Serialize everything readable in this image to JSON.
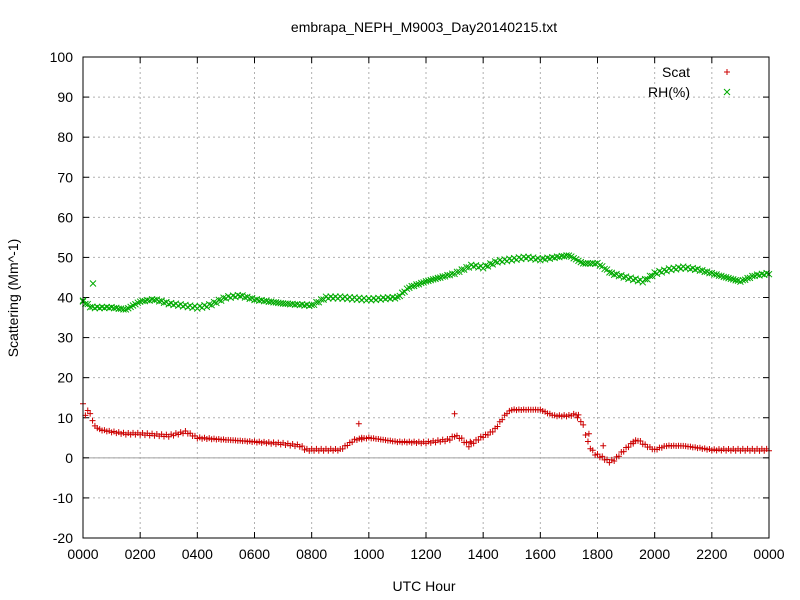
{
  "chart_data": {
    "type": "scatter",
    "title": "embrapa_NEPH_M9003_Day20140215.txt",
    "xlabel": "UTC Hour",
    "ylabel": "Scattering (Mm^-1)",
    "xlim": [
      0,
      24
    ],
    "ylim": [
      -20,
      100
    ],
    "x_tick_labels": [
      "0000",
      "0200",
      "0400",
      "0600",
      "0800",
      "1000",
      "1200",
      "1400",
      "1600",
      "1800",
      "2000",
      "2200",
      "0000"
    ],
    "y_ticks": [
      -20,
      -10,
      0,
      10,
      20,
      30,
      40,
      50,
      60,
      70,
      80,
      90,
      100
    ],
    "grid": true,
    "zero_line": true,
    "legend_position": "top-right",
    "series": [
      {
        "name": "Scat",
        "marker": "+",
        "color": "#cc0000",
        "knots": [
          [
            0,
            13.5
          ],
          [
            0.1,
            10
          ],
          [
            0.15,
            12
          ],
          [
            0.25,
            11
          ],
          [
            0.4,
            8
          ],
          [
            0.6,
            7
          ],
          [
            1,
            6.5
          ],
          [
            1.5,
            6
          ],
          [
            2,
            6
          ],
          [
            3,
            5.5
          ],
          [
            3.6,
            6.5
          ],
          [
            4,
            5
          ],
          [
            5,
            4.5
          ],
          [
            6,
            4
          ],
          [
            7,
            3.5
          ],
          [
            7.6,
            3
          ],
          [
            7.8,
            2
          ],
          [
            9,
            2
          ],
          [
            9.2,
            3
          ],
          [
            9.5,
            4.5
          ],
          [
            10,
            5
          ],
          [
            11,
            4
          ],
          [
            12,
            3.8
          ],
          [
            12.8,
            4.5
          ],
          [
            13,
            5.5
          ],
          [
            13.2,
            5
          ],
          [
            13.5,
            3
          ],
          [
            13.7,
            4
          ],
          [
            13.9,
            5
          ],
          [
            14.2,
            6
          ],
          [
            14.4,
            7
          ],
          [
            14.6,
            9
          ],
          [
            14.8,
            11
          ],
          [
            15,
            12
          ],
          [
            16,
            12
          ],
          [
            16.3,
            11
          ],
          [
            16.5,
            10.5
          ],
          [
            17,
            10.5
          ],
          [
            17.3,
            11
          ],
          [
            17.5,
            8
          ],
          [
            17.7,
            3
          ],
          [
            17.9,
            1
          ],
          [
            18.2,
            0
          ],
          [
            18.4,
            -1
          ],
          [
            18.6,
            -0.5
          ],
          [
            18.8,
            1
          ],
          [
            19.1,
            3
          ],
          [
            19.4,
            4.5
          ],
          [
            19.7,
            3
          ],
          [
            20,
            2
          ],
          [
            20.4,
            3
          ],
          [
            21,
            3
          ],
          [
            21.5,
            2.5
          ],
          [
            22,
            2
          ],
          [
            23,
            2
          ],
          [
            24,
            2
          ]
        ],
        "outliers": [
          [
            9.65,
            8.5
          ],
          [
            9.75,
            5
          ],
          [
            13,
            11
          ],
          [
            13.55,
            4
          ],
          [
            17.3,
            10
          ],
          [
            17.7,
            6
          ],
          [
            18.2,
            3
          ],
          [
            19.25,
            4
          ]
        ]
      },
      {
        "name": "RH(%)",
        "marker": "x",
        "color": "#00aa00",
        "knots": [
          [
            0,
            39
          ],
          [
            0.3,
            37.5
          ],
          [
            1,
            37.5
          ],
          [
            1.5,
            37
          ],
          [
            2,
            39
          ],
          [
            2.5,
            39.5
          ],
          [
            3,
            38.5
          ],
          [
            4,
            37.5
          ],
          [
            4.4,
            38
          ],
          [
            5,
            40
          ],
          [
            5.5,
            40.5
          ],
          [
            6,
            39.5
          ],
          [
            7,
            38.5
          ],
          [
            8,
            38
          ],
          [
            8.5,
            40
          ],
          [
            9,
            40
          ],
          [
            10,
            39.5
          ],
          [
            11,
            40
          ],
          [
            11.4,
            42.5
          ],
          [
            12,
            44
          ],
          [
            13,
            46
          ],
          [
            13.6,
            48
          ],
          [
            14,
            47.5
          ],
          [
            14.5,
            49
          ],
          [
            15,
            49.5
          ],
          [
            15.5,
            50
          ],
          [
            16,
            49.5
          ],
          [
            16.5,
            50
          ],
          [
            17,
            50.5
          ],
          [
            17.5,
            48.5
          ],
          [
            18,
            48.5
          ],
          [
            18.5,
            46
          ],
          [
            19,
            45
          ],
          [
            19.6,
            44
          ],
          [
            20,
            46
          ],
          [
            20.5,
            47
          ],
          [
            21,
            47.5
          ],
          [
            21.5,
            47
          ],
          [
            22,
            46
          ],
          [
            22.5,
            45
          ],
          [
            23,
            44
          ],
          [
            23.5,
            45.5
          ],
          [
            24,
            46
          ]
        ],
        "outliers": [
          [
            0,
            39
          ],
          [
            0.35,
            43.5
          ]
        ]
      }
    ]
  }
}
